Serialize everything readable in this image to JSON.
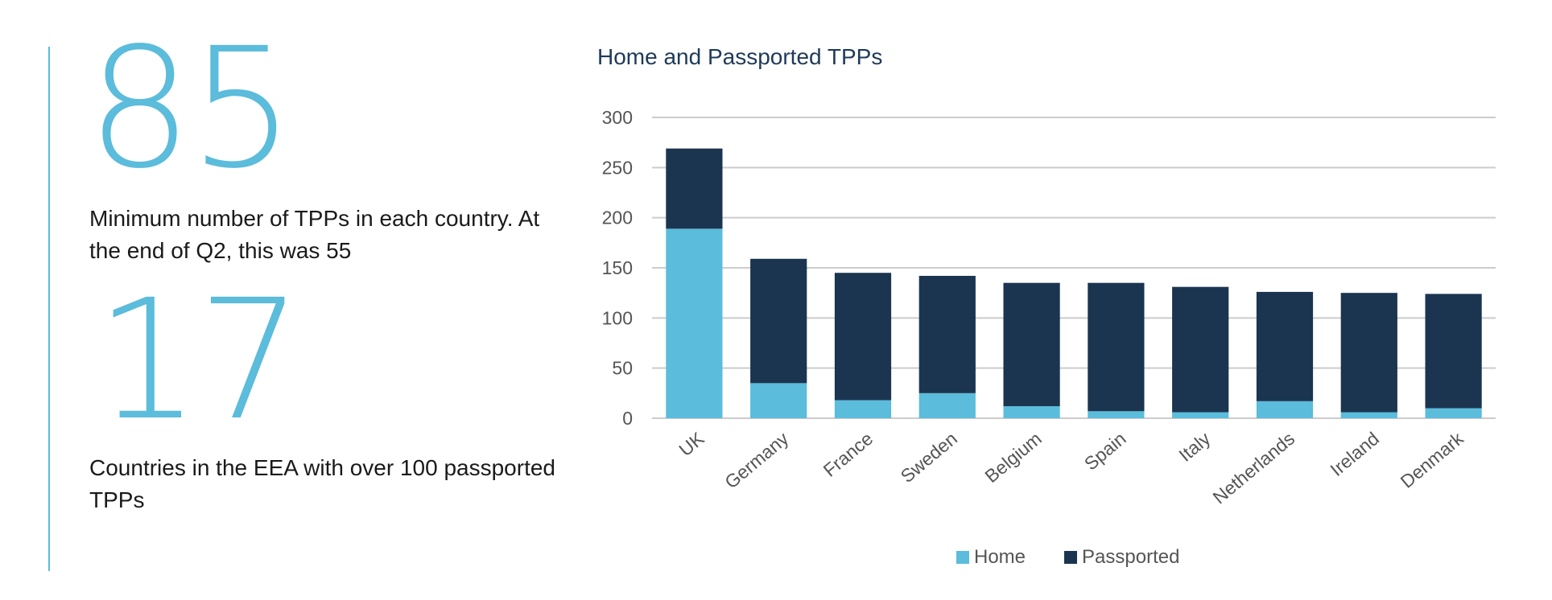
{
  "stats": [
    {
      "number": "85",
      "text": "Minimum number of TPPs in each country. At the end of Q2, this was 55"
    },
    {
      "number": "17",
      "text": "Countries in the EEA with over 100 passported TPPs"
    }
  ],
  "colors": {
    "accent": "#5bbcdb",
    "home": "#5bbcdb",
    "passported": "#1b3550",
    "grid": "#cccccc"
  },
  "chart_data": {
    "type": "bar",
    "stacked": true,
    "title": "Home and Passported TPPs",
    "xlabel": "",
    "ylabel": "",
    "ylim": [
      0,
      300
    ],
    "yticks": [
      0,
      50,
      100,
      150,
      200,
      250,
      300
    ],
    "grid": true,
    "legend_position": "bottom",
    "categories": [
      "UK",
      "Germany",
      "France",
      "Sweden",
      "Belgium",
      "Spain",
      "Italy",
      "Netherlands",
      "Ireland",
      "Denmark"
    ],
    "series": [
      {
        "name": "Home",
        "color": "#5bbcdb",
        "values": [
          189,
          35,
          18,
          25,
          12,
          7,
          6,
          17,
          6,
          10
        ]
      },
      {
        "name": "Passported",
        "color": "#1b3550",
        "values": [
          80,
          124,
          127,
          117,
          123,
          128,
          125,
          109,
          119,
          114
        ]
      }
    ]
  }
}
